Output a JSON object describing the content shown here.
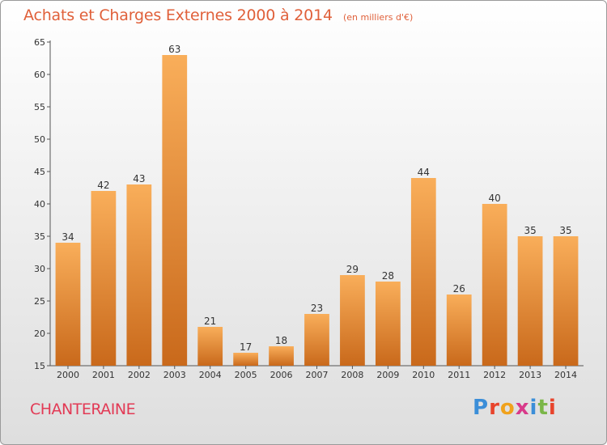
{
  "header": {
    "title": "Achats et Charges Externes 2000 à 2014",
    "subtitle": "(en milliers d'€)"
  },
  "footer": {
    "city": "CHANTERAINE",
    "logo": "Proxiti"
  },
  "colors": {
    "title": "#e0603a",
    "city": "#e23a55",
    "bar_light": "#f7a64f",
    "bar_dark": "#c9691b"
  },
  "chart_data": {
    "type": "bar",
    "title": "Achats et Charges Externes 2000 à 2014",
    "subtitle": "(en milliers d'€)",
    "xlabel": "",
    "ylabel": "",
    "categories": [
      "2000",
      "2001",
      "2002",
      "2003",
      "2004",
      "2005",
      "2006",
      "2007",
      "2008",
      "2009",
      "2010",
      "2011",
      "2012",
      "2013",
      "2014"
    ],
    "values": [
      34,
      42,
      43,
      63,
      21,
      17,
      18,
      23,
      29,
      28,
      44,
      26,
      40,
      35,
      35
    ],
    "ylim": [
      15,
      65
    ],
    "yticks": [
      15,
      20,
      25,
      30,
      35,
      40,
      45,
      50,
      55,
      60,
      65
    ],
    "grid": false,
    "legend": "none",
    "data_labels": true
  }
}
